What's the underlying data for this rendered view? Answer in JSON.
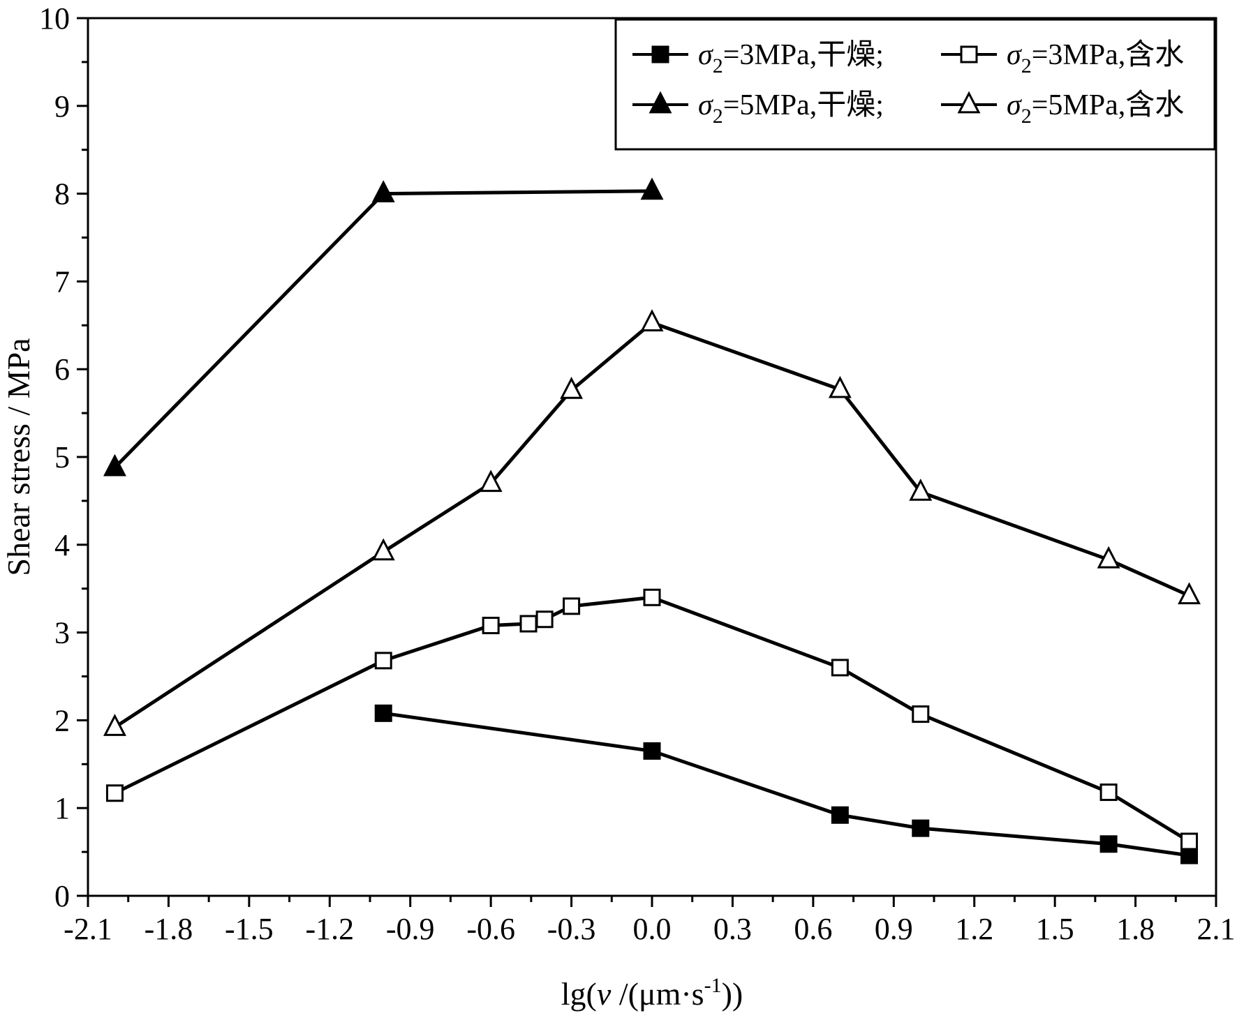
{
  "chart_data": {
    "type": "line",
    "title": "",
    "xlabel": {
      "prefix": "lg(",
      "var": "v",
      "mid": " /(μm·s",
      "sup": "-1",
      "suffix": "))"
    },
    "ylabel": "Shear stress / MPa",
    "xlim": [
      -2.1,
      2.1
    ],
    "ylim": [
      0,
      10
    ],
    "x_ticks": [
      -2.1,
      -1.8,
      -1.5,
      -1.2,
      -0.9,
      -0.6,
      -0.3,
      0.0,
      0.3,
      0.6,
      0.9,
      1.2,
      1.5,
      1.8,
      2.1
    ],
    "x_tick_labels": [
      "-2.1",
      "-1.8",
      "-1.5",
      "-1.2",
      "-0.9",
      "-0.6",
      "-0.3",
      "0.0",
      "0.3",
      "0.6",
      "0.9",
      "1.2",
      "1.5",
      "1.8",
      "2.1"
    ],
    "y_ticks": [
      0,
      1,
      2,
      3,
      4,
      5,
      6,
      7,
      8,
      9,
      10
    ],
    "y_tick_labels": [
      "0",
      "1",
      "2",
      "3",
      "4",
      "5",
      "6",
      "7",
      "8",
      "9",
      "10"
    ],
    "grid": false,
    "legend_position": "top-right",
    "series": [
      {
        "name": "σ2=3MPa,干燥;",
        "legend": {
          "sym": "σ",
          "sub": "2",
          "rest": "=3MPa,干燥;"
        },
        "marker": "square-filled",
        "x": [
          -1.0,
          0.0,
          0.7,
          1.0,
          1.7,
          2.0
        ],
        "y": [
          2.08,
          1.65,
          0.92,
          0.77,
          0.59,
          0.46
        ]
      },
      {
        "name": "σ2=3MPa,含水",
        "legend": {
          "sym": "σ",
          "sub": "2",
          "rest": "=3MPa,含水"
        },
        "marker": "square-open",
        "x": [
          -2.0,
          -1.0,
          -0.6,
          -0.46,
          -0.4,
          -0.3,
          0.0,
          0.7,
          1.0,
          1.7,
          2.0
        ],
        "y": [
          1.17,
          2.68,
          3.08,
          3.1,
          3.15,
          3.3,
          3.4,
          2.6,
          2.07,
          1.18,
          0.62
        ]
      },
      {
        "name": "σ2=5MPa,干燥;",
        "legend": {
          "sym": "σ",
          "sub": "2",
          "rest": "=5MPa,干燥;"
        },
        "marker": "triangle-filled",
        "x": [
          -2.0,
          -1.0,
          0.0
        ],
        "y": [
          4.88,
          8.0,
          8.03
        ]
      },
      {
        "name": "σ2=5MPa,含水",
        "legend": {
          "sym": "σ",
          "sub": "2",
          "rest": "=5MPa,含水"
        },
        "marker": "triangle-open",
        "x": [
          -2.0,
          -1.0,
          -0.6,
          -0.3,
          0.0,
          0.7,
          1.0,
          1.7,
          2.0
        ],
        "y": [
          1.92,
          3.92,
          4.7,
          5.76,
          6.53,
          5.77,
          4.6,
          3.83,
          3.42
        ]
      }
    ]
  }
}
